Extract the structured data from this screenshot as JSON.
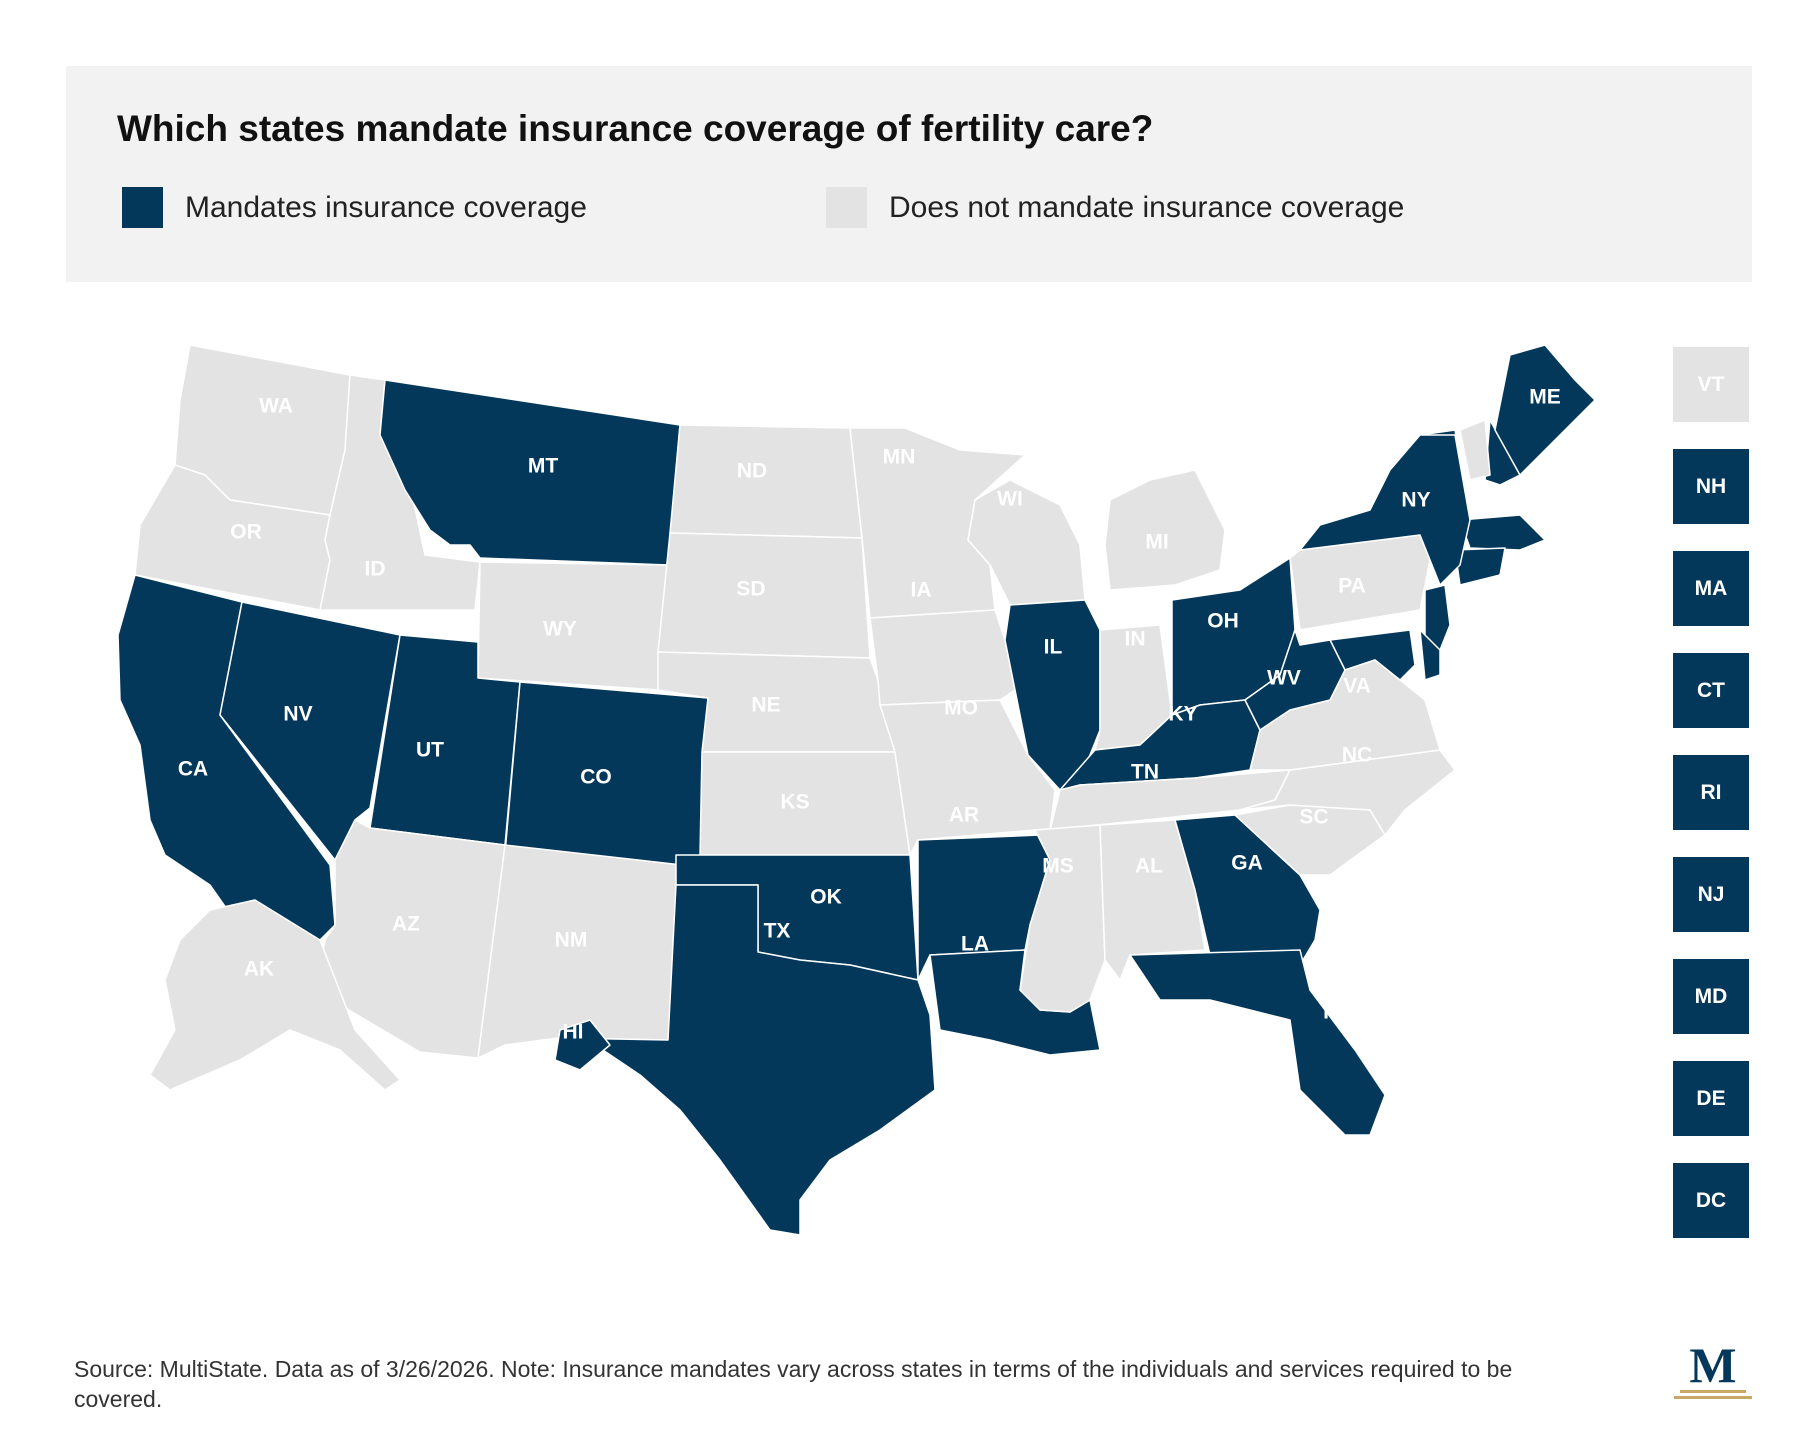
{
  "title": "Which states mandate insurance coverage of fertility care?",
  "legend": {
    "mandates": {
      "label": "Mandates insurance coverage",
      "color": "#03385a"
    },
    "no_mandate": {
      "label": "Does not mandate insurance coverage",
      "color": "#e3e3e3"
    }
  },
  "label_colors": {
    "on_mandate": "#ffffff",
    "on_no_mandate": "#ffffff"
  },
  "states": [
    {
      "abbr": "WA",
      "mandate": false
    },
    {
      "abbr": "OR",
      "mandate": false
    },
    {
      "abbr": "CA",
      "mandate": true
    },
    {
      "abbr": "ID",
      "mandate": false
    },
    {
      "abbr": "NV",
      "mandate": true
    },
    {
      "abbr": "MT",
      "mandate": true
    },
    {
      "abbr": "WY",
      "mandate": false
    },
    {
      "abbr": "UT",
      "mandate": true
    },
    {
      "abbr": "AZ",
      "mandate": false
    },
    {
      "abbr": "CO",
      "mandate": true
    },
    {
      "abbr": "NM",
      "mandate": false
    },
    {
      "abbr": "ND",
      "mandate": false
    },
    {
      "abbr": "SD",
      "mandate": false
    },
    {
      "abbr": "NE",
      "mandate": false
    },
    {
      "abbr": "KS",
      "mandate": false
    },
    {
      "abbr": "OK",
      "mandate": true
    },
    {
      "abbr": "TX",
      "mandate": true
    },
    {
      "abbr": "MN",
      "mandate": false
    },
    {
      "abbr": "IA",
      "mandate": false
    },
    {
      "abbr": "MO",
      "mandate": false
    },
    {
      "abbr": "AR",
      "mandate": true
    },
    {
      "abbr": "LA",
      "mandate": true
    },
    {
      "abbr": "WI",
      "mandate": false
    },
    {
      "abbr": "IL",
      "mandate": true
    },
    {
      "abbr": "MI",
      "mandate": false
    },
    {
      "abbr": "IN",
      "mandate": false
    },
    {
      "abbr": "OH",
      "mandate": true
    },
    {
      "abbr": "KY",
      "mandate": true
    },
    {
      "abbr": "TN",
      "mandate": false
    },
    {
      "abbr": "MS",
      "mandate": false
    },
    {
      "abbr": "AL",
      "mandate": false
    },
    {
      "abbr": "GA",
      "mandate": true
    },
    {
      "abbr": "FL",
      "mandate": true
    },
    {
      "abbr": "SC",
      "mandate": false
    },
    {
      "abbr": "NC",
      "mandate": false
    },
    {
      "abbr": "VA",
      "mandate": false
    },
    {
      "abbr": "WV",
      "mandate": true
    },
    {
      "abbr": "PA",
      "mandate": false
    },
    {
      "abbr": "NY",
      "mandate": true
    },
    {
      "abbr": "ME",
      "mandate": true
    },
    {
      "abbr": "AK",
      "mandate": false
    },
    {
      "abbr": "HI",
      "mandate": true
    }
  ],
  "small_states": [
    {
      "abbr": "VT",
      "mandate": false
    },
    {
      "abbr": "NH",
      "mandate": true
    },
    {
      "abbr": "MA",
      "mandate": true
    },
    {
      "abbr": "CT",
      "mandate": true
    },
    {
      "abbr": "RI",
      "mandate": true
    },
    {
      "abbr": "NJ",
      "mandate": true
    },
    {
      "abbr": "MD",
      "mandate": true
    },
    {
      "abbr": "DE",
      "mandate": true
    },
    {
      "abbr": "DC",
      "mandate": true
    }
  ],
  "footnote": "Source: MultiState. Data as of 3/26/2026. Note: Insurance mandates vary across states in terms of the individuals and services required to be covered.",
  "logo": {
    "letter": "M",
    "color": "#03385a",
    "accent": "#c9a866"
  }
}
